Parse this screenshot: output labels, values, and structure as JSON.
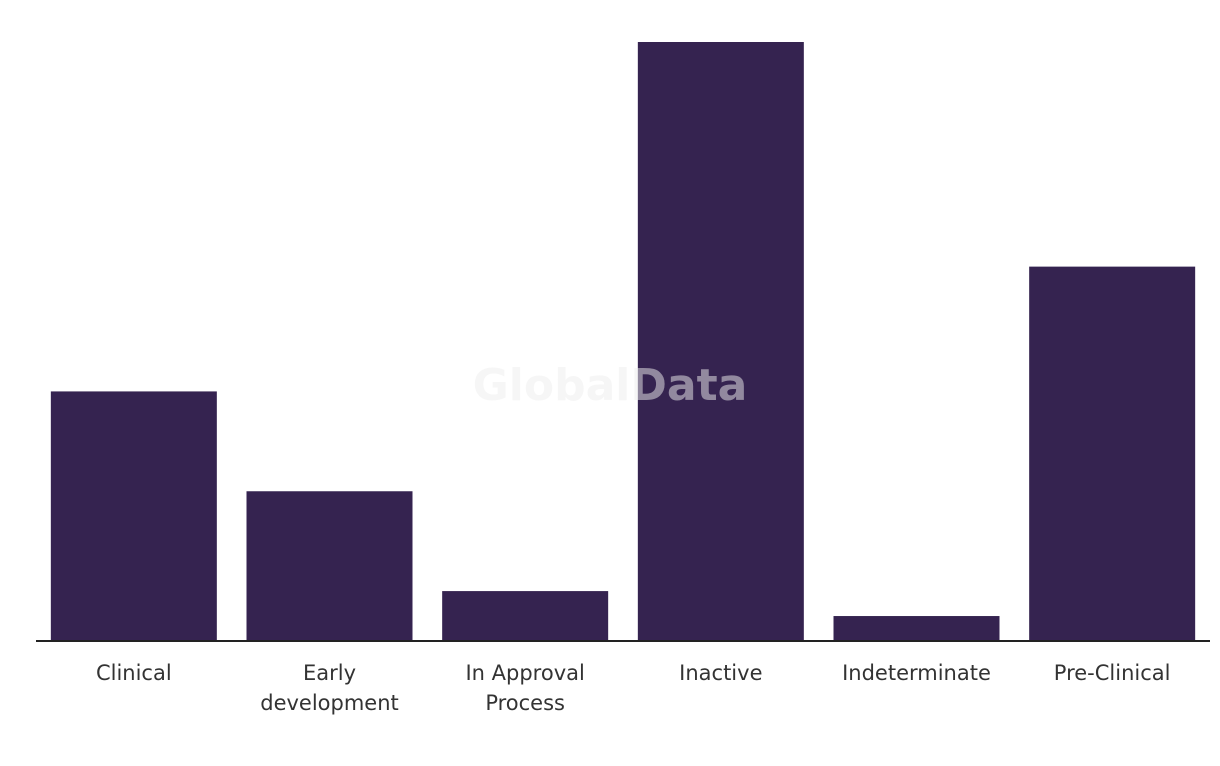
{
  "chart_data": {
    "type": "bar",
    "watermark": "GlobalData",
    "categories": [
      "Clinical",
      "Early development",
      "In Approval Process",
      "Inactive",
      "Indeterminate",
      "Pre-Clinical"
    ],
    "values": [
      10,
      6,
      2,
      24,
      1,
      15
    ],
    "color": "#352350",
    "ylim": [
      0,
      24
    ]
  }
}
